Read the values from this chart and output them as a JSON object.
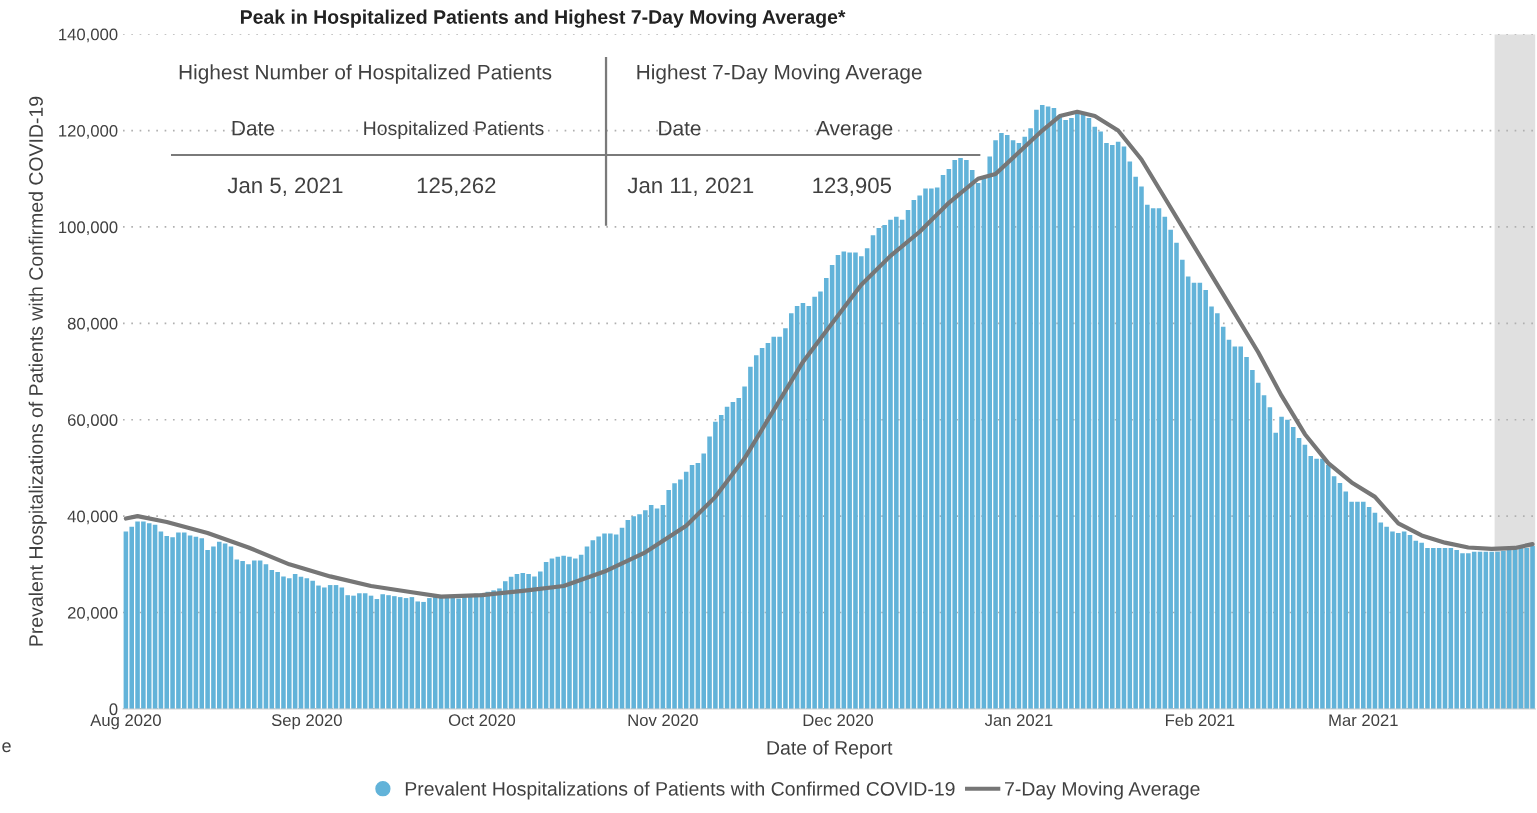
{
  "chart_data": {
    "type": "bar",
    "title": "Peak in Hospitalized Patients and Highest 7-Day Moving Average*",
    "xlabel": "Date of Report",
    "ylabel": "Prevalent Hospitalizations of Patients with Confirmed COVID-19",
    "annotations": [
      "Highest Number of Hospitalized Patients",
      "Highest 7-Day Moving Average",
      "Date",
      "Hospitalized Patients",
      "Date",
      "Average",
      "Jan 5, 2021",
      "125,262",
      "Jan 11, 2021",
      "123,905",
      "e"
    ],
    "xlim": [
      "2020-07-31T12:00",
      "2021-03-30T12:00"
    ],
    "xticks": [
      {
        "value": "2020-08-01",
        "label": "Aug 2020"
      },
      {
        "value": "2020-09-01",
        "label": "Sep 2020"
      },
      {
        "value": "2020-10-01",
        "label": "Oct 2020"
      },
      {
        "value": "2020-11-01",
        "label": "Nov 2020"
      },
      {
        "value": "2020-12-01",
        "label": "Dec 2020"
      },
      {
        "value": "2021-01-01",
        "label": "Jan 2021"
      },
      {
        "value": "2021-02-01",
        "label": "Feb 2021"
      },
      {
        "value": "2021-03-01",
        "label": "Mar 2021"
      }
    ],
    "ylim": [
      0,
      140000
    ],
    "yticks": [
      0,
      {
        "value": 20000,
        "label": "20,000"
      },
      {
        "value": 40000,
        "label": "40,000"
      },
      {
        "value": 60000,
        "label": "60,000"
      },
      {
        "value": 80000,
        "label": "80,000"
      },
      {
        "value": 100000,
        "label": "100,000"
      },
      {
        "value": 120000,
        "label": "120,000"
      },
      {
        "value": 140000,
        "label": "140,000"
      }
    ],
    "grid": "y",
    "legend": "bottom",
    "bands": [
      {
        "axis": "x",
        "from": "2021-03-23T12:00",
        "to": "2021-03-30T12:00",
        "color": "#e0e0e0"
      }
    ],
    "series": [
      {
        "name": "Prevalent Hospitalizations of Patients with Confirmed COVID-19",
        "color": "#62b3d9",
        "x": [
          "2020-08-01",
          "2020-08-02",
          "2020-08-03",
          "2020-08-04",
          "2020-08-05",
          "2020-08-06",
          "2020-08-07",
          "2020-08-08",
          "2020-08-09",
          "2020-08-10",
          "2020-08-11",
          "2020-08-12",
          "2020-08-13",
          "2020-08-14",
          "2020-08-15",
          "2020-08-16",
          "2020-08-17",
          "2020-08-18",
          "2020-08-19",
          "2020-08-20",
          "2020-08-21",
          "2020-08-22",
          "2020-08-23",
          "2020-08-24",
          "2020-08-25",
          "2020-08-26",
          "2020-08-27",
          "2020-08-28",
          "2020-08-29",
          "2020-08-30",
          "2020-08-31",
          "2020-09-01",
          "2020-09-02",
          "2020-09-03",
          "2020-09-04",
          "2020-09-05",
          "2020-09-06",
          "2020-09-07",
          "2020-09-08",
          "2020-09-09",
          "2020-09-10",
          "2020-09-11",
          "2020-09-12",
          "2020-09-13",
          "2020-09-14",
          "2020-09-15",
          "2020-09-16",
          "2020-09-17",
          "2020-09-18",
          "2020-09-19",
          "2020-09-20",
          "2020-09-21",
          "2020-09-22",
          "2020-09-23",
          "2020-09-24",
          "2020-09-25",
          "2020-09-26",
          "2020-09-27",
          "2020-09-28",
          "2020-09-29",
          "2020-09-30",
          "2020-10-01",
          "2020-10-02",
          "2020-10-03",
          "2020-10-04",
          "2020-10-05",
          "2020-10-06",
          "2020-10-07",
          "2020-10-08",
          "2020-10-09",
          "2020-10-10",
          "2020-10-11",
          "2020-10-12",
          "2020-10-13",
          "2020-10-14",
          "2020-10-15",
          "2020-10-16",
          "2020-10-17",
          "2020-10-18",
          "2020-10-19",
          "2020-10-20",
          "2020-10-21",
          "2020-10-22",
          "2020-10-23",
          "2020-10-24",
          "2020-10-25",
          "2020-10-26",
          "2020-10-27",
          "2020-10-28",
          "2020-10-29",
          "2020-10-30",
          "2020-10-31",
          "2020-11-01",
          "2020-11-02",
          "2020-11-03",
          "2020-11-04",
          "2020-11-05",
          "2020-11-06",
          "2020-11-07",
          "2020-11-08",
          "2020-11-09",
          "2020-11-10",
          "2020-11-11",
          "2020-11-12",
          "2020-11-13",
          "2020-11-14",
          "2020-11-15",
          "2020-11-16",
          "2020-11-17",
          "2020-11-18",
          "2020-11-19",
          "2020-11-20",
          "2020-11-21",
          "2020-11-22",
          "2020-11-23",
          "2020-11-24",
          "2020-11-25",
          "2020-11-26",
          "2020-11-27",
          "2020-11-28",
          "2020-11-29",
          "2020-11-30",
          "2020-12-01",
          "2020-12-02",
          "2020-12-03",
          "2020-12-04",
          "2020-12-05",
          "2020-12-06",
          "2020-12-07",
          "2020-12-08",
          "2020-12-09",
          "2020-12-10",
          "2020-12-11",
          "2020-12-12",
          "2020-12-13",
          "2020-12-14",
          "2020-12-15",
          "2020-12-16",
          "2020-12-17",
          "2020-12-18",
          "2020-12-19",
          "2020-12-20",
          "2020-12-21",
          "2020-12-22",
          "2020-12-23",
          "2020-12-24",
          "2020-12-25",
          "2020-12-26",
          "2020-12-27",
          "2020-12-28",
          "2020-12-29",
          "2020-12-30",
          "2020-12-31",
          "2021-01-01",
          "2021-01-02",
          "2021-01-03",
          "2021-01-04",
          "2021-01-05",
          "2021-01-06",
          "2021-01-07",
          "2021-01-08",
          "2021-01-09",
          "2021-01-10",
          "2021-01-11",
          "2021-01-12",
          "2021-01-13",
          "2021-01-14",
          "2021-01-15",
          "2021-01-16",
          "2021-01-17",
          "2021-01-18",
          "2021-01-19",
          "2021-01-20",
          "2021-01-21",
          "2021-01-22",
          "2021-01-23",
          "2021-01-24",
          "2021-01-25",
          "2021-01-26",
          "2021-01-27",
          "2021-01-28",
          "2021-01-29",
          "2021-01-30",
          "2021-01-31",
          "2021-02-01",
          "2021-02-02",
          "2021-02-03",
          "2021-02-04",
          "2021-02-05",
          "2021-02-06",
          "2021-02-07",
          "2021-02-08",
          "2021-02-09",
          "2021-02-10",
          "2021-02-11",
          "2021-02-12",
          "2021-02-13",
          "2021-02-14",
          "2021-02-15",
          "2021-02-16",
          "2021-02-17",
          "2021-02-18",
          "2021-02-19",
          "2021-02-20",
          "2021-02-21",
          "2021-02-22",
          "2021-02-23",
          "2021-02-24",
          "2021-02-25",
          "2021-02-26",
          "2021-02-27",
          "2021-02-28",
          "2021-03-01",
          "2021-03-02",
          "2021-03-03",
          "2021-03-04",
          "2021-03-05",
          "2021-03-06",
          "2021-03-07",
          "2021-03-08",
          "2021-03-09",
          "2021-03-10",
          "2021-03-11",
          "2021-03-12",
          "2021-03-13",
          "2021-03-14",
          "2021-03-15",
          "2021-03-16",
          "2021-03-17",
          "2021-03-18",
          "2021-03-19",
          "2021-03-20",
          "2021-03-21",
          "2021-03-22",
          "2021-03-23",
          "2021-03-24",
          "2021-03-25",
          "2021-03-26",
          "2021-03-27",
          "2021-03-28",
          "2021-03-29",
          "2021-03-30"
        ],
        "values": [
          36800,
          37800,
          38900,
          38900,
          38500,
          38200,
          36800,
          35900,
          35600,
          36600,
          36600,
          36000,
          35700,
          35400,
          33000,
          33700,
          34700,
          34300,
          33700,
          31000,
          30700,
          30000,
          30800,
          30800,
          30000,
          28800,
          28400,
          27500,
          27100,
          28000,
          27400,
          27100,
          26600,
          25600,
          25200,
          25700,
          25700,
          25200,
          23600,
          23500,
          24000,
          24000,
          23500,
          22800,
          23800,
          23600,
          23400,
          23200,
          23000,
          23200,
          22300,
          22200,
          23000,
          23300,
          23400,
          23500,
          23300,
          22900,
          23400,
          23600,
          23900,
          24000,
          24300,
          24600,
          25000,
          26500,
          27400,
          28000,
          28200,
          28000,
          27500,
          28500,
          30500,
          31200,
          31600,
          31800,
          31600,
          31200,
          32000,
          33700,
          35000,
          35800,
          36400,
          36400,
          36200,
          37600,
          39200,
          40000,
          40400,
          41200,
          42300,
          41600,
          42300,
          45400,
          46800,
          47600,
          49200,
          50600,
          51000,
          53000,
          56500,
          59600,
          61000,
          62700,
          63700,
          64500,
          66900,
          71000,
          73400,
          74900,
          75900,
          77200,
          77200,
          79000,
          82100,
          83600,
          84200,
          83600,
          85500,
          86600,
          89400,
          92100,
          94200,
          94900,
          94700,
          94700,
          93900,
          95600,
          98300,
          99800,
          100400,
          101500,
          102100,
          101500,
          103500,
          105600,
          106500,
          108000,
          108000,
          108200,
          110800,
          112000,
          113900,
          114300,
          113900,
          111800,
          109100,
          110400,
          114600,
          118000,
          119500,
          119100,
          118000,
          117400,
          118700,
          120500,
          124300,
          125300,
          125000,
          124700,
          122900,
          122200,
          122600,
          123600,
          123600,
          122600,
          120800,
          119800,
          117400,
          117000,
          117700,
          116700,
          113600,
          110400,
          108400,
          104600,
          103900,
          103900,
          102100,
          99400,
          96700,
          93200,
          89700,
          88400,
          88400,
          86900,
          83500,
          82100,
          79300,
          76600,
          75200,
          75200,
          73000,
          70300,
          67700,
          65100,
          62600,
          57300,
          60600,
          60000,
          58500,
          56200,
          54800,
          52500,
          51900,
          51900,
          50600,
          48300,
          46900,
          45100,
          43000,
          43000,
          43000,
          41900,
          40700,
          38700,
          37800,
          36800,
          36500,
          36800,
          36100,
          34900,
          34500,
          33400,
          33400,
          33400,
          33400,
          33400,
          33000,
          32300,
          32300,
          32600,
          32600,
          32600,
          32600,
          32600,
          32800,
          33000,
          33200,
          33800,
          33400,
          33800
        ]
      },
      {
        "name": "7-Day Moving Average",
        "type": "line",
        "color": "#767676",
        "line_style": "solid",
        "x": [
          "2020-08-01",
          "2020-08-03",
          "2020-08-08",
          "2020-08-15",
          "2020-08-22",
          "2020-08-29",
          "2020-09-05",
          "2020-09-12",
          "2020-09-19",
          "2020-09-24",
          "2020-10-01",
          "2020-10-08",
          "2020-10-15",
          "2020-10-22",
          "2020-10-29",
          "2020-11-05",
          "2020-11-10",
          "2020-11-15",
          "2020-11-20",
          "2020-11-25",
          "2020-11-30",
          "2020-12-05",
          "2020-12-10",
          "2020-12-15",
          "2020-12-20",
          "2020-12-25",
          "2020-12-28",
          "2021-01-01",
          "2021-01-05",
          "2021-01-08",
          "2021-01-11",
          "2021-01-14",
          "2021-01-18",
          "2021-01-22",
          "2021-01-26",
          "2021-01-30",
          "2021-02-03",
          "2021-02-07",
          "2021-02-11",
          "2021-02-15",
          "2021-02-19",
          "2021-02-23",
          "2021-02-27",
          "2021-03-03",
          "2021-03-07",
          "2021-03-11",
          "2021-03-15",
          "2021-03-19",
          "2021-03-23",
          "2021-03-27",
          "2021-03-30"
        ],
        "values": [
          39500,
          40000,
          38800,
          36500,
          33500,
          30000,
          27500,
          25500,
          24200,
          23300,
          23600,
          24500,
          25500,
          28500,
          32500,
          38000,
          44000,
          52000,
          62000,
          72000,
          80000,
          88000,
          94000,
          99000,
          105000,
          110000,
          111000,
          115500,
          120000,
          123000,
          123900,
          123000,
          120000,
          114000,
          106000,
          98000,
          90000,
          82000,
          74000,
          65000,
          57000,
          51000,
          47000,
          44000,
          38500,
          36000,
          34500,
          33500,
          33200,
          33400,
          34200
        ]
      }
    ]
  }
}
